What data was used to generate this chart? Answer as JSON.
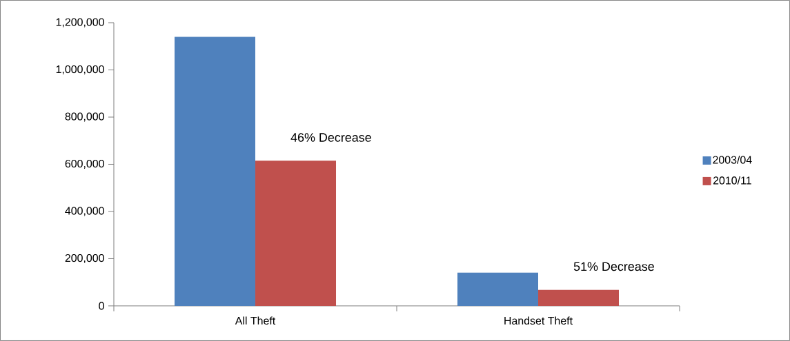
{
  "chart_data": {
    "type": "bar",
    "categories": [
      "All Theft",
      "Handset Theft"
    ],
    "series": [
      {
        "name": "2003/04",
        "color": "#4f81bd",
        "values": [
          1140000,
          141000
        ]
      },
      {
        "name": "2010/11",
        "color": "#c0504d",
        "values": [
          615000,
          68000
        ]
      }
    ],
    "ylim": [
      0,
      1200000
    ],
    "yticks": [
      {
        "value": 0,
        "label": "0"
      },
      {
        "value": 200000,
        "label": "200,000"
      },
      {
        "value": 400000,
        "label": "400,000"
      },
      {
        "value": 600000,
        "label": "600,000"
      },
      {
        "value": 800000,
        "label": "800,000"
      },
      {
        "value": 1000000,
        "label": "1,000,000"
      },
      {
        "value": 1200000,
        "label": "1,200,000"
      }
    ],
    "annotations": [
      "46% Decrease",
      "51% Decrease"
    ],
    "legend": "right"
  }
}
